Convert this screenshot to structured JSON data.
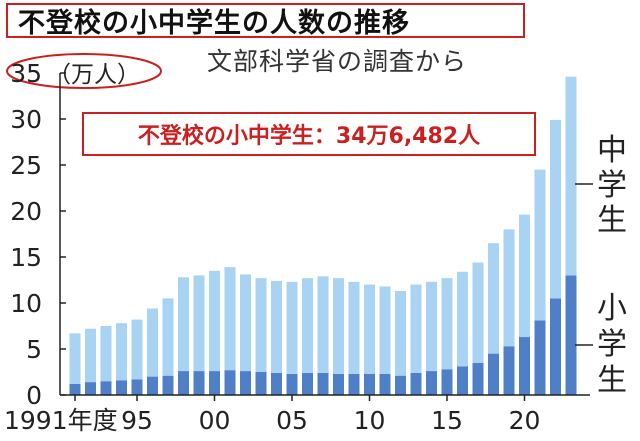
{
  "title": "不登校の小中学生の人数の推移",
  "source": "文部科学省の調査から",
  "callout": "不登校の小中学生：34万6,482人",
  "colors": {
    "accent": "#cc1f1f",
    "elementary": "#4f7fc6",
    "junior_high": "#a9d3f2"
  },
  "chart_data": {
    "type": "bar",
    "stacked": true,
    "unit_label": "（万人）",
    "ylim": [
      0,
      35
    ],
    "yticks": [
      "0",
      "5",
      "10",
      "15",
      "20",
      "25",
      "30",
      "35"
    ],
    "xtick_labels": [
      {
        "year": 1991,
        "label": "1991年度"
      },
      {
        "year": 1995,
        "label": "95"
      },
      {
        "year": 2000,
        "label": "00"
      },
      {
        "year": 2005,
        "label": "05"
      },
      {
        "year": 2010,
        "label": "10"
      },
      {
        "year": 2015,
        "label": "15"
      },
      {
        "year": 2020,
        "label": "20"
      }
    ],
    "categories": [
      1991,
      1992,
      1993,
      1994,
      1995,
      1996,
      1997,
      1998,
      1999,
      2000,
      2001,
      2002,
      2003,
      2004,
      2005,
      2006,
      2007,
      2008,
      2009,
      2010,
      2011,
      2012,
      2013,
      2014,
      2015,
      2016,
      2017,
      2018,
      2019,
      2020,
      2021,
      2022,
      2023
    ],
    "series": [
      {
        "name": "小学生",
        "key": "elementary",
        "values": [
          1.2,
          1.4,
          1.5,
          1.6,
          1.7,
          2.0,
          2.1,
          2.6,
          2.6,
          2.6,
          2.7,
          2.6,
          2.5,
          2.4,
          2.3,
          2.4,
          2.4,
          2.3,
          2.3,
          2.3,
          2.3,
          2.1,
          2.4,
          2.6,
          2.8,
          3.1,
          3.5,
          4.5,
          5.3,
          6.3,
          8.1,
          10.5,
          13.0
        ]
      },
      {
        "name": "中学生",
        "key": "junior_high",
        "values": [
          5.5,
          5.8,
          6.0,
          6.2,
          6.5,
          7.4,
          8.4,
          10.2,
          10.4,
          10.9,
          11.2,
          10.5,
          10.2,
          10.0,
          10.0,
          10.3,
          10.5,
          10.4,
          10.0,
          9.7,
          9.5,
          9.2,
          9.6,
          9.7,
          9.9,
          10.3,
          10.9,
          12.0,
          12.7,
          13.3,
          16.4,
          19.4,
          21.6
        ]
      }
    ]
  }
}
